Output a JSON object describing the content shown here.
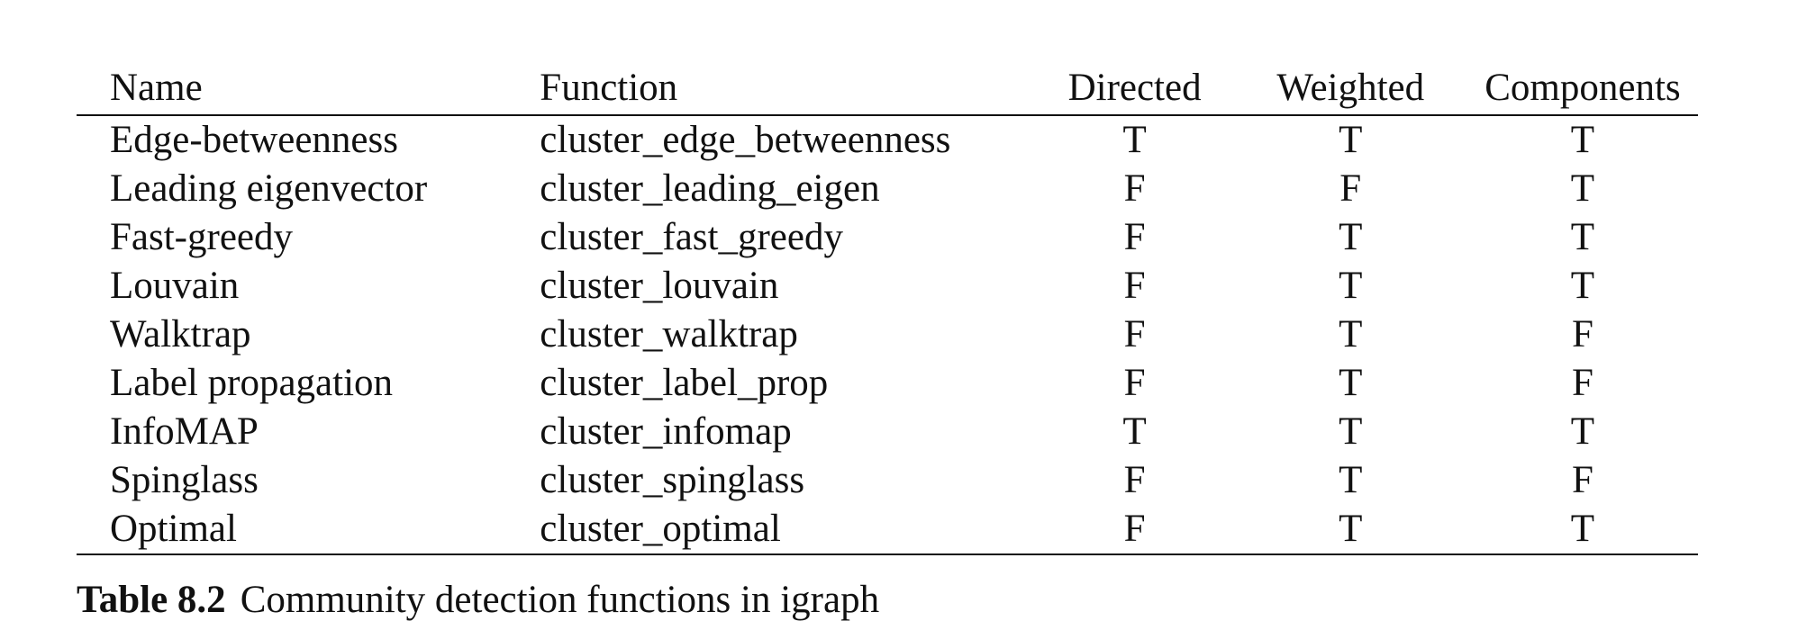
{
  "table": {
    "headers": [
      "Name",
      "Function",
      "Directed",
      "Weighted",
      "Components"
    ],
    "rows": [
      [
        "Edge-betweenness",
        "cluster_edge_betweenness",
        "T",
        "T",
        "T"
      ],
      [
        "Leading eigenvector",
        "cluster_leading_eigen",
        "F",
        "F",
        "T"
      ],
      [
        "Fast-greedy",
        "cluster_fast_greedy",
        "F",
        "T",
        "T"
      ],
      [
        "Louvain",
        "cluster_louvain",
        "F",
        "T",
        "T"
      ],
      [
        "Walktrap",
        "cluster_walktrap",
        "F",
        "T",
        "F"
      ],
      [
        "Label propagation",
        "cluster_label_prop",
        "F",
        "T",
        "F"
      ],
      [
        "InfoMAP",
        "cluster_infomap",
        "T",
        "T",
        "T"
      ],
      [
        "Spinglass",
        "cluster_spinglass",
        "F",
        "T",
        "F"
      ],
      [
        "Optimal",
        "cluster_optimal",
        "F",
        "T",
        "T"
      ]
    ]
  },
  "caption": {
    "label": "Table 8.2",
    "text": "Community detection functions in igraph"
  }
}
